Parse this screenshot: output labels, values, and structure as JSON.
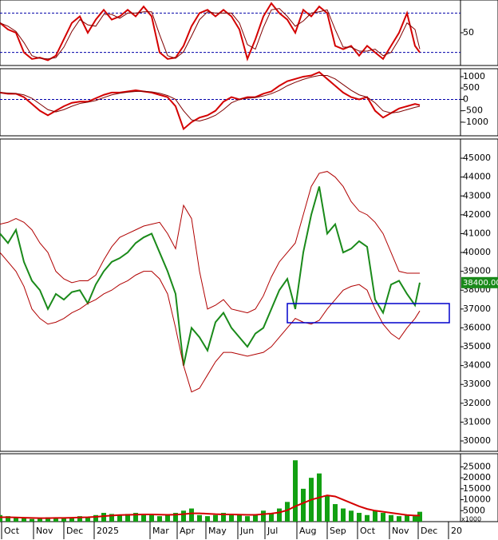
{
  "chart_data": [
    {
      "type": "line",
      "xlim": [
        0,
        288.5
      ],
      "ylim": [
        0,
        100
      ],
      "yticks": [
        50
      ],
      "levels": [
        20,
        80
      ],
      "x": [
        0,
        5,
        10,
        15,
        20,
        25,
        30,
        35,
        40,
        45,
        50,
        55,
        60,
        65,
        70,
        75,
        80,
        85,
        90,
        95,
        100,
        105,
        110,
        115,
        120,
        125,
        130,
        135,
        140,
        145,
        150,
        155,
        160,
        165,
        170,
        175,
        180,
        185,
        190,
        195,
        200,
        205,
        210,
        215,
        220,
        225,
        230,
        235,
        240,
        245,
        250,
        255,
        260,
        263
      ],
      "series": [
        {
          "color": "#d40000",
          "values": [
            65,
            55,
            50,
            20,
            10,
            12,
            8,
            15,
            40,
            65,
            75,
            50,
            70,
            85,
            70,
            75,
            85,
            75,
            90,
            75,
            20,
            10,
            12,
            30,
            60,
            80,
            85,
            75,
            85,
            75,
            55,
            10,
            40,
            75,
            95,
            80,
            70,
            50,
            85,
            75,
            90,
            80,
            30,
            25,
            30,
            15,
            30,
            20,
            10,
            30,
            50,
            80,
            30,
            20
          ]
        },
        {
          "color": "#800000",
          "values": [
            65,
            60,
            52,
            35,
            15,
            11,
            10,
            12,
            28,
            52,
            70,
            62,
            60,
            78,
            78,
            72,
            80,
            80,
            82,
            82,
            47,
            15,
            11,
            21,
            45,
            70,
            82,
            80,
            80,
            80,
            65,
            32,
            25,
            58,
            85,
            87,
            75,
            60,
            68,
            80,
            82,
            85,
            55,
            28,
            28,
            22,
            22,
            25,
            15,
            20,
            40,
            65,
            55,
            25
          ]
        }
      ]
    },
    {
      "type": "line",
      "xlim": [
        0,
        288.5
      ],
      "ylim": [
        -1600,
        1350
      ],
      "yticks": [
        1000,
        500,
        0,
        -500,
        -1000
      ],
      "levels": [
        0
      ],
      "x": [
        0,
        5,
        10,
        15,
        20,
        25,
        30,
        35,
        40,
        45,
        50,
        55,
        60,
        65,
        70,
        75,
        80,
        85,
        90,
        95,
        100,
        105,
        110,
        115,
        120,
        125,
        130,
        135,
        140,
        145,
        150,
        155,
        160,
        165,
        170,
        175,
        180,
        185,
        190,
        195,
        200,
        205,
        210,
        215,
        220,
        225,
        230,
        235,
        240,
        245,
        250,
        255,
        260,
        263
      ],
      "series": [
        {
          "color": "#d40000",
          "values": [
            300,
            250,
            250,
            100,
            -200,
            -500,
            -700,
            -500,
            -300,
            -150,
            -100,
            -100,
            50,
            200,
            300,
            300,
            350,
            400,
            350,
            300,
            200,
            100,
            -300,
            -1300,
            -1000,
            -800,
            -700,
            -500,
            -100,
            100,
            0,
            100,
            100,
            250,
            350,
            600,
            800,
            900,
            1000,
            1050,
            1200,
            900,
            600,
            300,
            100,
            0,
            100,
            -500,
            -800,
            -600,
            -400,
            -300,
            -200,
            -250
          ]
        },
        {
          "color": "#800000",
          "values": [
            300,
            280,
            260,
            200,
            50,
            -200,
            -450,
            -550,
            -450,
            -300,
            -180,
            -120,
            -50,
            80,
            200,
            270,
            320,
            350,
            360,
            330,
            270,
            170,
            0,
            -500,
            -900,
            -950,
            -850,
            -700,
            -450,
            -150,
            0,
            50,
            80,
            150,
            250,
            400,
            600,
            750,
            880,
            980,
            1050,
            1050,
            900,
            650,
            400,
            200,
            100,
            -150,
            -500,
            -600,
            -550,
            -450,
            -350,
            -300
          ]
        }
      ]
    },
    {
      "type": "line",
      "xlim": [
        0,
        288.5
      ],
      "ylim": [
        29450,
        46020
      ],
      "yticks": [
        30000,
        31000,
        32000,
        33000,
        34000,
        35000,
        36000,
        37000,
        38000,
        39000,
        40000,
        41000,
        42000,
        43000,
        44000,
        45000
      ],
      "last_label": "38400.00",
      "x": [
        0,
        5,
        10,
        15,
        20,
        25,
        30,
        35,
        40,
        45,
        50,
        55,
        60,
        65,
        70,
        75,
        80,
        85,
        90,
        95,
        100,
        105,
        110,
        115,
        120,
        125,
        130,
        135,
        140,
        145,
        150,
        155,
        160,
        165,
        170,
        175,
        180,
        185,
        190,
        195,
        200,
        205,
        210,
        215,
        220,
        225,
        230,
        235,
        240,
        245,
        250,
        255,
        260,
        263
      ],
      "series": [
        {
          "color": "#1a8a1a",
          "values": [
            41000,
            40500,
            41200,
            39500,
            38500,
            38000,
            37000,
            37800,
            37500,
            37900,
            38000,
            37300,
            38300,
            39000,
            39500,
            39700,
            40000,
            40500,
            40800,
            41000,
            40000,
            39000,
            37800,
            34000,
            36000,
            35500,
            34800,
            36300,
            36800,
            36000,
            35500,
            35000,
            35700,
            36000,
            37000,
            38000,
            38600,
            37000,
            40000,
            42000,
            43500,
            41000,
            41500,
            40000,
            40200,
            40600,
            40300,
            37500,
            36800,
            38300,
            38500,
            37800,
            37200,
            38400
          ]
        },
        {
          "color": "#b00000",
          "values": [
            41500,
            41600,
            41800,
            41600,
            41200,
            40500,
            40000,
            39000,
            38600,
            38400,
            38500,
            38500,
            38800,
            39600,
            40300,
            40800,
            41000,
            41200,
            41400,
            41500,
            41600,
            41000,
            40200,
            42500,
            41800,
            39000,
            37000,
            37200,
            37500,
            37000,
            36900,
            36800,
            37000,
            37700,
            38700,
            39500,
            40000,
            40500,
            42000,
            43500,
            44200,
            44300,
            44000,
            43500,
            42700,
            42200,
            42000,
            41600,
            41000,
            40000,
            39000,
            38900,
            38900,
            38900
          ]
        },
        {
          "color": "#b00000",
          "values": [
            40000,
            39500,
            39000,
            38200,
            37000,
            36500,
            36200,
            36300,
            36500,
            36800,
            37000,
            37300,
            37500,
            37800,
            38000,
            38300,
            38500,
            38800,
            39000,
            39000,
            38600,
            37800,
            36000,
            34000,
            32600,
            32800,
            33500,
            34200,
            34700,
            34700,
            34600,
            34500,
            34600,
            34700,
            35000,
            35500,
            36000,
            36500,
            36300,
            36200,
            36400,
            37000,
            37500,
            38000,
            38200,
            38300,
            38000,
            37000,
            36200,
            35700,
            35400,
            36000,
            36500,
            36900
          ]
        }
      ]
    },
    {
      "type": "bar",
      "xlim": [
        0,
        288.5
      ],
      "ylim": [
        0,
        31000
      ],
      "yticks": [
        5000,
        10000,
        15000,
        20000,
        25000
      ],
      "unit_label": "x1000",
      "xticks": [
        {
          "value": 1,
          "label": "Oct"
        },
        {
          "value": 21,
          "label": "Nov"
        },
        {
          "value": 40,
          "label": "Dec"
        },
        {
          "value": 59,
          "label": "2025"
        },
        {
          "value": 94,
          "label": "Mar"
        },
        {
          "value": 111,
          "label": "Apr"
        },
        {
          "value": 129,
          "label": "May"
        },
        {
          "value": 149,
          "label": "Jun"
        },
        {
          "value": 166,
          "label": "Jul"
        },
        {
          "value": 186,
          "label": "Aug"
        },
        {
          "value": 205,
          "label": "Sep"
        },
        {
          "value": 224,
          "label": "Oct"
        },
        {
          "value": 244,
          "label": "Nov"
        },
        {
          "value": 262,
          "label": "Dec"
        },
        {
          "value": 281,
          "label": "20"
        }
      ],
      "x": [
        0,
        5,
        10,
        15,
        20,
        25,
        30,
        35,
        40,
        45,
        50,
        55,
        60,
        65,
        70,
        75,
        80,
        85,
        90,
        95,
        100,
        105,
        110,
        115,
        120,
        125,
        130,
        135,
        140,
        145,
        150,
        155,
        160,
        165,
        170,
        175,
        180,
        185,
        190,
        195,
        200,
        205,
        210,
        215,
        220,
        225,
        230,
        235,
        240,
        245,
        250,
        255,
        260,
        263
      ],
      "series": [
        {
          "color": "#12a012",
          "values": [
            3000,
            2500,
            2000,
            1500,
            1200,
            1500,
            2000,
            1800,
            1500,
            2000,
            2500,
            2200,
            3000,
            4000,
            3500,
            3000,
            3500,
            4000,
            3500,
            3000,
            2500,
            3000,
            4000,
            5000,
            6000,
            3000,
            2500,
            3000,
            4000,
            3500,
            3000,
            2500,
            3000,
            5000,
            4000,
            6000,
            9000,
            28000,
            15000,
            20000,
            22000,
            12000,
            8000,
            6000,
            5000,
            4000,
            3000,
            5000,
            4000,
            3000,
            2500,
            3000,
            2500,
            4500
          ]
        },
        {
          "type": "line",
          "color": "#d40000",
          "values": [
            2000,
            2000,
            1900,
            1800,
            1700,
            1600,
            1600,
            1700,
            1700,
            1800,
            1900,
            2000,
            2200,
            2500,
            2800,
            3000,
            3100,
            3200,
            3300,
            3300,
            3200,
            3100,
            3200,
            3400,
            3800,
            3800,
            3600,
            3400,
            3300,
            3300,
            3200,
            3100,
            3100,
            3400,
            3700,
            4200,
            5200,
            7000,
            8500,
            10000,
            11000,
            12000,
            11500,
            10000,
            8500,
            7000,
            5800,
            5000,
            4500,
            4000,
            3500,
            3000,
            2800,
            2800
          ]
        }
      ]
    }
  ]
}
